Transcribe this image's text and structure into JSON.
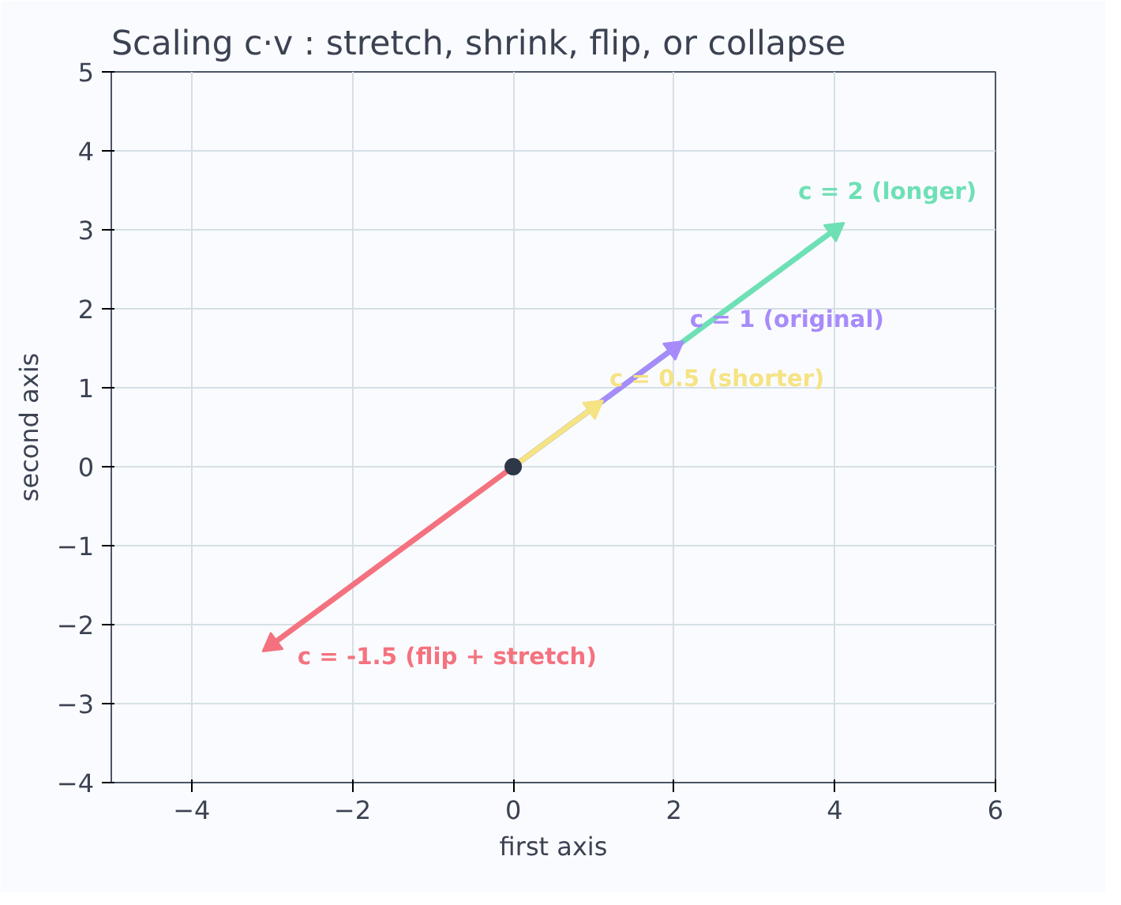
{
  "chart_data": {
    "type": "line",
    "title": "Scaling c·v : stretch, shrink, flip, or collapse",
    "xlabel": "first axis",
    "ylabel": "second axis",
    "series": [
      {
        "color": "#f4727f",
        "x": [
          0,
          -3
        ],
        "values": [
          0,
          -2.25
        ]
      },
      {
        "color": "#6ee0b5",
        "x": [
          0,
          4
        ],
        "values": [
          0,
          3
        ]
      },
      {
        "color": "#a78bfa",
        "x": [
          0,
          2
        ],
        "values": [
          0,
          1.5
        ]
      },
      {
        "color": "#f5e384",
        "x": [
          0,
          1
        ],
        "values": [
          0,
          0.75
        ]
      },
      {
        "type": "scatter",
        "marker": "circle",
        "color": "#2d3748",
        "x": [
          0
        ],
        "values": [
          0
        ]
      }
    ],
    "annotations": [
      "c = -1.5  (flip + stretch)",
      "c = 2  (longer)",
      "c = 1  (original)",
      "c = 0.5  (shorter)"
    ],
    "xlim": [
      -5,
      6
    ],
    "ylim": [
      -4,
      5
    ],
    "xticks": [
      {
        "value": -4,
        "label": "−4"
      },
      {
        "value": -2,
        "label": "−2"
      },
      0,
      2,
      4,
      6
    ],
    "yticks": [
      {
        "value": -4,
        "label": "−4"
      },
      {
        "value": -3,
        "label": "−3"
      },
      {
        "value": -2,
        "label": "−2"
      },
      {
        "value": -1,
        "label": "−1"
      },
      0,
      1,
      2,
      3,
      4,
      5
    ],
    "grid": true,
    "marker": "triangle",
    "line_style": "solid"
  }
}
